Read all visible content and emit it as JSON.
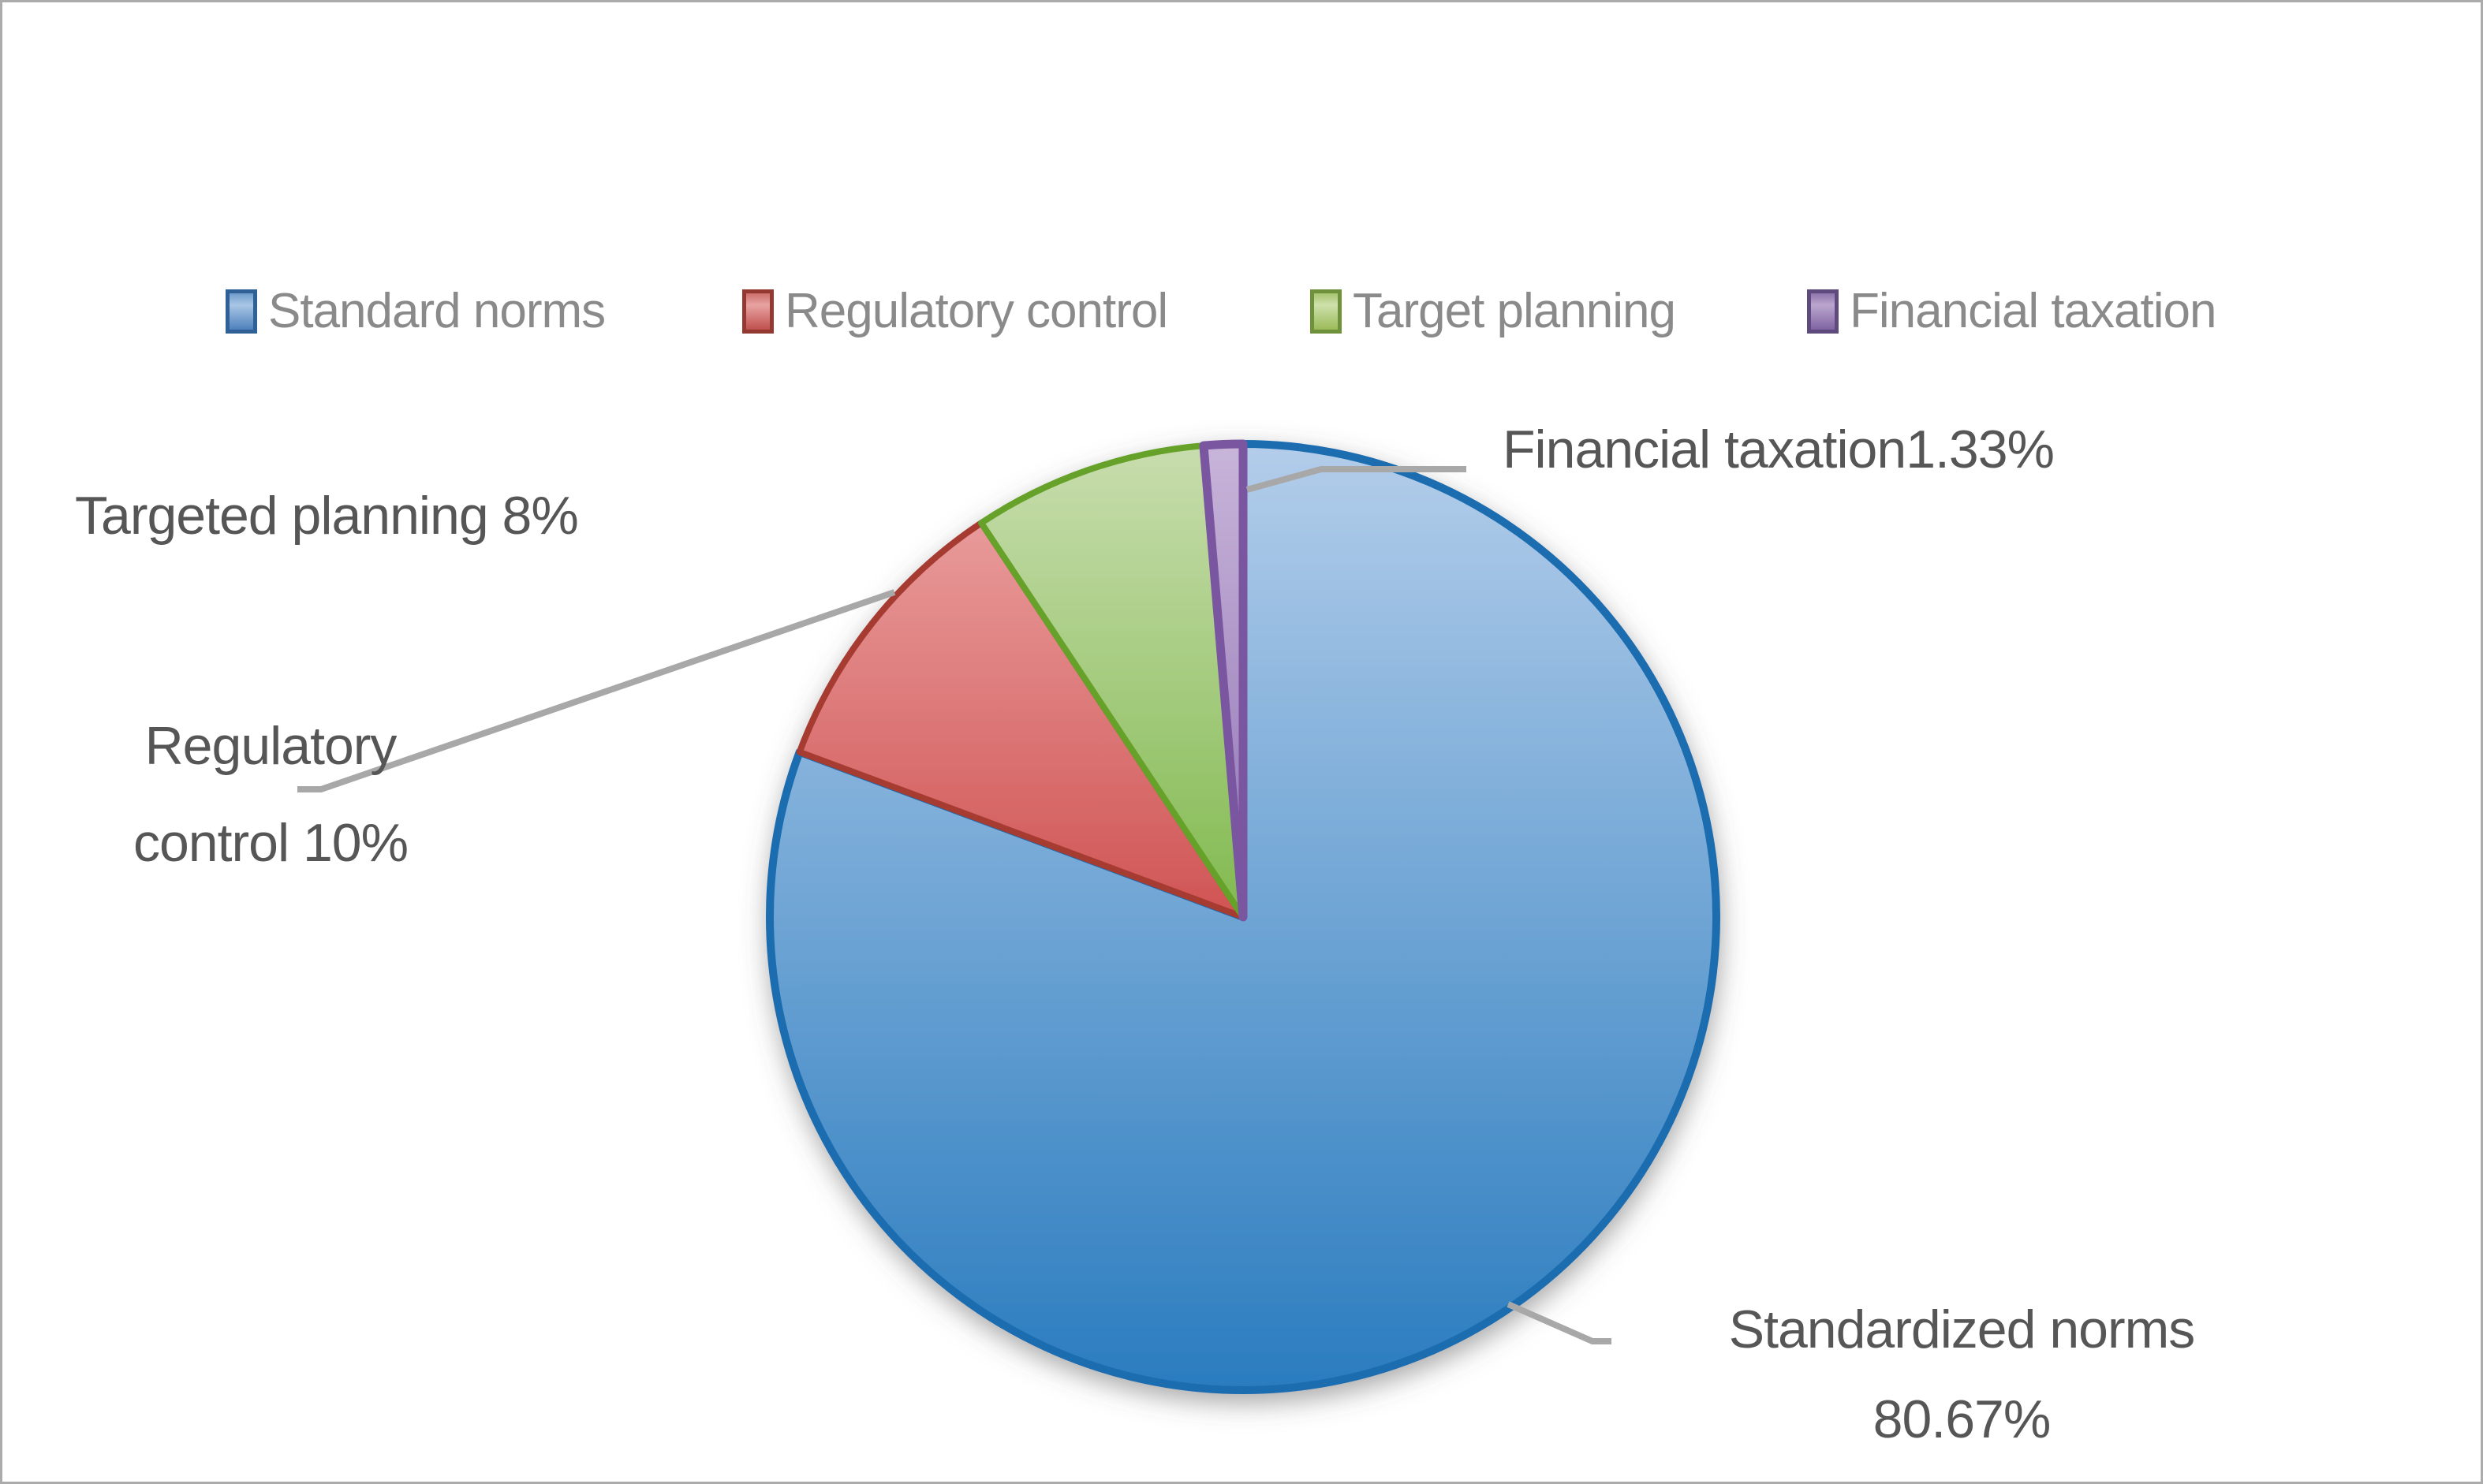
{
  "figure": {
    "background": "#ffffff",
    "frame_border_color": "#ababab",
    "label_text_color": "#565656",
    "legend_text_color": "#8a8a8a",
    "leader_line_color": "#a8a8a8"
  },
  "legend": {
    "position": "top",
    "items": [
      {
        "label": "Standard norms",
        "swatch": {
          "top": "#6f9ccb",
          "mid": "#a9c6e5",
          "base": "#4f81bd",
          "border": "#2f6096"
        }
      },
      {
        "label": "Regulatory control",
        "swatch": {
          "top": "#cc6f6c",
          "mid": "#e8a3a2",
          "base": "#c0504d",
          "border": "#943832"
        }
      },
      {
        "label": "Target planning",
        "swatch": {
          "top": "#a7c470",
          "mid": "#cde0ab",
          "base": "#9bbb59",
          "border": "#6f913b"
        }
      },
      {
        "label": "Financial taxation",
        "swatch": {
          "top": "#8d74ab",
          "mid": "#bba6cf",
          "base": "#8064a2",
          "border": "#5f4a7d"
        }
      }
    ]
  },
  "chart_data": {
    "type": "pie",
    "title": "",
    "legend_position": "top",
    "direction": "clockwise",
    "start_angle_deg": 0,
    "categories": [
      "Standard norms",
      "Regulatory control",
      "Target planning",
      "Financial taxation"
    ],
    "values": [
      80.67,
      10,
      8,
      1.33
    ],
    "unit": "%",
    "slices": [
      {
        "name": "Standard norms",
        "value_pct": 80.67,
        "data_label": "Standardized norms 80.67%",
        "fill_top": "#b3cdea",
        "fill_bottom": "#2a7cbf",
        "border": "#1a6cb0",
        "border_width": 10
      },
      {
        "name": "Regulatory control",
        "value_pct": 10,
        "data_label": "Regulatory control 10%",
        "fill_top": "#eda8a8",
        "fill_bottom": "#cf5050",
        "border": "#a63a30",
        "border_width": 8
      },
      {
        "name": "Target planning",
        "value_pct": 8,
        "data_label": "Targeted planning 8%",
        "fill_top": "#c8ddae",
        "fill_bottom": "#7eb84b",
        "border": "#66a229",
        "border_width": 8
      },
      {
        "name": "Financial taxation",
        "value_pct": 1.33,
        "data_label": "Financial taxation1.33%",
        "fill_top": "#c8b5d9",
        "fill_bottom": "#8e6fb3",
        "border": "#7a57a1",
        "border_width": 11
      }
    ]
  },
  "callouts": {
    "financial": {
      "text": "Financial taxation1.33%"
    },
    "targeted": {
      "text": "Targeted planning 8%"
    },
    "regulatory": {
      "line1": "Regulatory",
      "line2": "control 10%"
    },
    "standardized": {
      "line1": "Standardized norms",
      "line2": "80.67%"
    }
  }
}
